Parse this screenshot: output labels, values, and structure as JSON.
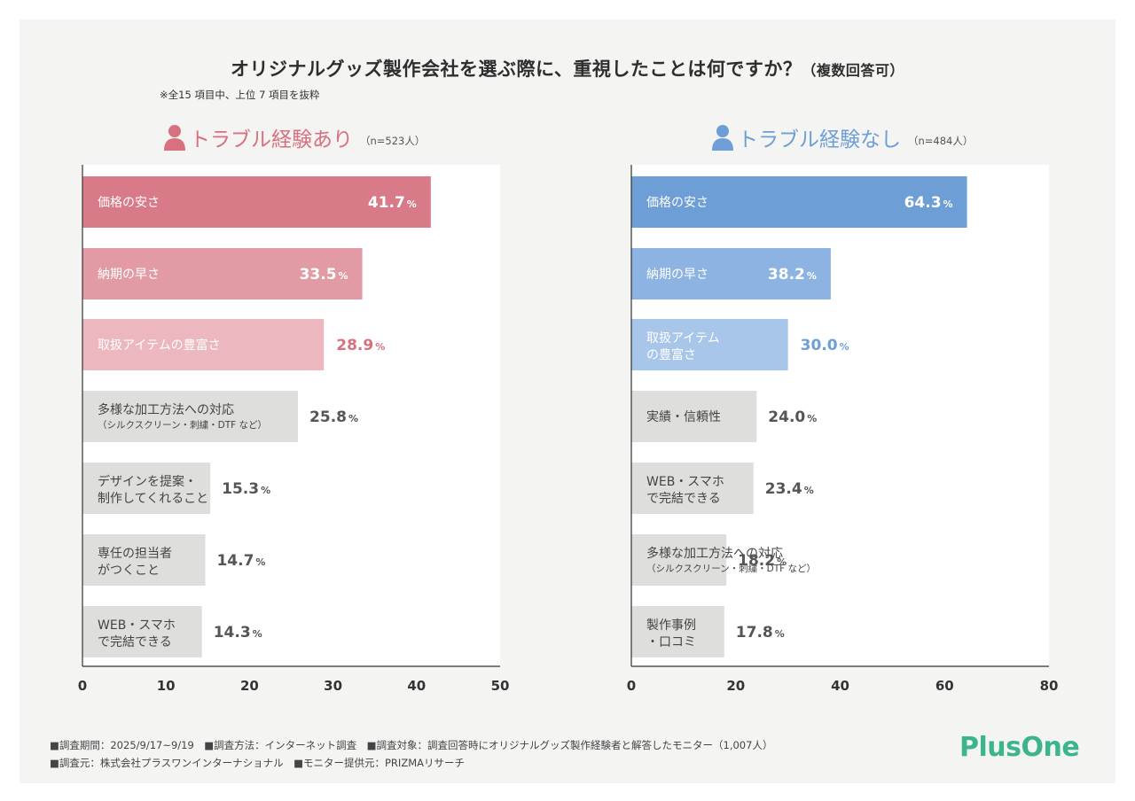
{
  "title": "オリジナルグッズ製作会社を選ぶ際に、重視したことは何ですか？",
  "title_suffix": "（複数回答可）",
  "note": "※全15 項目中、上位 7 項目を抜粋",
  "footer": {
    "line1": "■調査期間：2025/9/17~9/19　■調査方法：インターネット調査　■調査対象：調査回答時にオリジナルグッズ製作経験者と解答したモニター（1,007人）",
    "line2": "■調査元：株式会社プラスワンインターナショナル　■モニター提供元：PRIZMAリサーチ"
  },
  "logo": {
    "part1": "Plus",
    "part2": "One"
  },
  "colors": {
    "trouble_yes": [
      "#d87a88",
      "#e29ba5",
      "#ecb7bf"
    ],
    "trouble_no": [
      "#6e9ed6",
      "#8db3e3",
      "#a8c5ea"
    ],
    "other": "#dededd",
    "accent_yes": "#d9707f",
    "accent_no": "#6e9ed6",
    "logo": "#3cb48c"
  },
  "chart_data": [
    {
      "type": "bar",
      "orientation": "horizontal",
      "panel_title": "トラブル経験あり",
      "n_label": "（n=523人）",
      "categories": [
        [
          "価格の安さ"
        ],
        [
          "納期の早さ"
        ],
        [
          "取扱アイテムの豊富さ"
        ],
        [
          "多様な加工方法への対応",
          "（シルクスクリーン・刺繍・DTF など）"
        ],
        [
          "デザインを提案・",
          "制作してくれること"
        ],
        [
          "専任の担当者",
          "がつくこと"
        ],
        [
          "WEB・スマホ",
          "で完結できる"
        ]
      ],
      "values": [
        41.7,
        33.5,
        28.9,
        25.8,
        15.3,
        14.7,
        14.3
      ],
      "unit": "%",
      "xlim": [
        0,
        50
      ],
      "xticks": [
        "0",
        "10",
        "20",
        "30",
        "40",
        "50"
      ]
    },
    {
      "type": "bar",
      "orientation": "horizontal",
      "panel_title": "トラブル経験なし",
      "n_label": "（n=484人）",
      "categories": [
        [
          "価格の安さ"
        ],
        [
          "納期の早さ"
        ],
        [
          "取扱アイテム",
          "の豊富さ"
        ],
        [
          "実績・信頼性"
        ],
        [
          "WEB・スマホ",
          "で完結できる"
        ],
        [
          "多様な加工方法への対応",
          "（シルクスクリーン・刺繍・DTF など）"
        ],
        [
          "製作事例",
          "・口コミ"
        ]
      ],
      "values": [
        64.3,
        38.2,
        30.0,
        24.0,
        23.4,
        18.2,
        17.8
      ],
      "unit": "%",
      "xlim": [
        0,
        80
      ],
      "xticks": [
        "0",
        "20",
        "40",
        "60",
        "80"
      ]
    }
  ]
}
